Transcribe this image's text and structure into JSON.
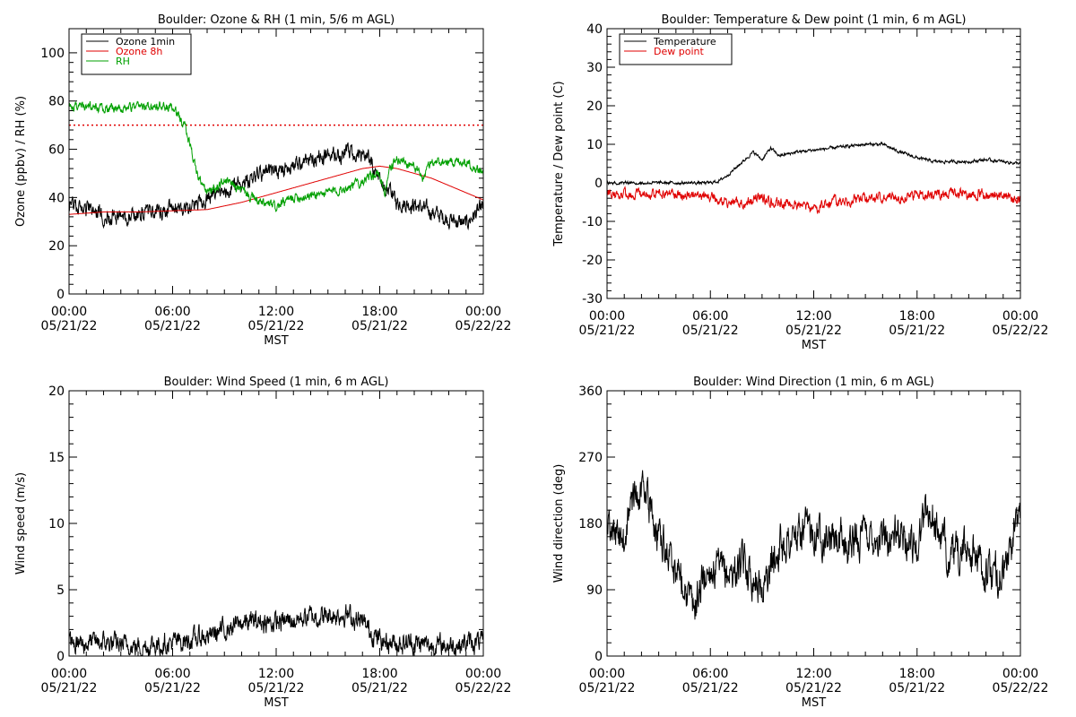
{
  "x_ticks": [
    {
      "time": "00:00",
      "date": "05/21/22"
    },
    {
      "time": "06:00",
      "date": "05/21/22"
    },
    {
      "time": "12:00",
      "date": "05/21/22"
    },
    {
      "time": "18:00",
      "date": "05/21/22"
    },
    {
      "time": "00:00",
      "date": "05/22/22"
    }
  ],
  "chart_data": [
    {
      "type": "line",
      "title": "Boulder: Ozone & RH (1 min, 5/6 m AGL)",
      "xlabel": "MST",
      "ylabel": "Ozone (ppbv) / RH (%)",
      "xlim": [
        0,
        24
      ],
      "ylim": [
        0,
        110
      ],
      "yticks": [
        0,
        20,
        40,
        60,
        80,
        100
      ],
      "legend": "top-left",
      "reference_line": {
        "y": 70,
        "color": "#e00000",
        "style": "dotted"
      },
      "series": [
        {
          "name": "Ozone 1min",
          "color": "#000000",
          "noise": 2.5,
          "seed": 1,
          "points": [
            [
              0,
              37
            ],
            [
              1,
              35
            ],
            [
              2,
              33
            ],
            [
              3,
              32
            ],
            [
              4,
              33
            ],
            [
              5,
              34
            ],
            [
              6,
              35
            ],
            [
              7,
              36
            ],
            [
              8,
              39
            ],
            [
              9,
              43
            ],
            [
              10,
              47
            ],
            [
              11,
              49
            ],
            [
              12,
              51
            ],
            [
              13,
              53
            ],
            [
              14,
              56
            ],
            [
              15,
              57
            ],
            [
              16,
              58
            ],
            [
              17,
              57
            ],
            [
              17.5,
              55
            ],
            [
              18,
              47
            ],
            [
              19,
              38
            ],
            [
              20,
              37
            ],
            [
              21,
              34
            ],
            [
              22,
              31
            ],
            [
              23,
              29
            ],
            [
              23.5,
              33
            ],
            [
              24,
              36
            ]
          ]
        },
        {
          "name": "Ozone 8h",
          "color": "#e00000",
          "noise": 0,
          "seed": 2,
          "points": [
            [
              0,
              33
            ],
            [
              2,
              34
            ],
            [
              4,
              34
            ],
            [
              6,
              34.5
            ],
            [
              8,
              35
            ],
            [
              10,
              38
            ],
            [
              12,
              42
            ],
            [
              14,
              46
            ],
            [
              16,
              50
            ],
            [
              17,
              52
            ],
            [
              18,
              53
            ],
            [
              19,
              52
            ],
            [
              20,
              50
            ],
            [
              21,
              48
            ],
            [
              22,
              45
            ],
            [
              23,
              42
            ],
            [
              24,
              39
            ]
          ]
        },
        {
          "name": "RH",
          "color": "#00a000",
          "noise": 1.5,
          "seed": 3,
          "points": [
            [
              0,
              78
            ],
            [
              2,
              77
            ],
            [
              4,
              77.5
            ],
            [
              5,
              78
            ],
            [
              6,
              77
            ],
            [
              6.7,
              70
            ],
            [
              7,
              62
            ],
            [
              7.5,
              48
            ],
            [
              8,
              42
            ],
            [
              8.5,
              44
            ],
            [
              9,
              47
            ],
            [
              10,
              43
            ],
            [
              11,
              38
            ],
            [
              12,
              36
            ],
            [
              13,
              40
            ],
            [
              14,
              41
            ],
            [
              15,
              42
            ],
            [
              16,
              44
            ],
            [
              17,
              47
            ],
            [
              18,
              50
            ],
            [
              18.3,
              42
            ],
            [
              18.6,
              52
            ],
            [
              19,
              56
            ],
            [
              20,
              53
            ],
            [
              20.5,
              48
            ],
            [
              21,
              55
            ],
            [
              22,
              55
            ],
            [
              23,
              55
            ],
            [
              24,
              50
            ]
          ]
        }
      ]
    },
    {
      "type": "line",
      "title": "Boulder: Temperature & Dew point (1 min, 6 m AGL)",
      "xlabel": "MST",
      "ylabel": "Temperature / Dew point (C)",
      "xlim": [
        0,
        24
      ],
      "ylim": [
        -30,
        40
      ],
      "yticks": [
        -30,
        -20,
        -10,
        0,
        10,
        20,
        30,
        40
      ],
      "legend": "top-left",
      "series": [
        {
          "name": "Temperature",
          "color": "#000000",
          "noise": 0.3,
          "seed": 4,
          "points": [
            [
              0,
              0
            ],
            [
              3,
              0
            ],
            [
              6,
              0
            ],
            [
              6.5,
              0.5
            ],
            [
              7,
              2
            ],
            [
              7.5,
              4
            ],
            [
              8,
              6
            ],
            [
              8.5,
              8
            ],
            [
              9,
              6
            ],
            [
              9.5,
              9
            ],
            [
              10,
              7
            ],
            [
              11,
              8
            ],
            [
              12,
              8.5
            ],
            [
              13,
              9
            ],
            [
              14,
              9.5
            ],
            [
              15,
              10
            ],
            [
              16,
              10
            ],
            [
              17,
              8
            ],
            [
              18,
              6.5
            ],
            [
              19,
              5.5
            ],
            [
              20,
              5.5
            ],
            [
              21,
              5.5
            ],
            [
              22,
              6
            ],
            [
              23,
              5.5
            ],
            [
              24,
              5
            ]
          ]
        },
        {
          "name": "Dew point",
          "color": "#e00000",
          "noise": 1,
          "seed": 5,
          "points": [
            [
              0,
              -3
            ],
            [
              3,
              -3
            ],
            [
              6,
              -3.5
            ],
            [
              7,
              -5
            ],
            [
              8,
              -5.5
            ],
            [
              9,
              -4
            ],
            [
              10,
              -5
            ],
            [
              11,
              -6
            ],
            [
              12,
              -7
            ],
            [
              13,
              -5
            ],
            [
              14,
              -4.5
            ],
            [
              15,
              -4
            ],
            [
              16,
              -3.5
            ],
            [
              17,
              -4
            ],
            [
              18,
              -3
            ],
            [
              19,
              -3
            ],
            [
              20,
              -2.5
            ],
            [
              21,
              -3
            ],
            [
              22,
              -3
            ],
            [
              23,
              -3
            ],
            [
              24,
              -4.5
            ]
          ]
        }
      ]
    },
    {
      "type": "line",
      "title": "Boulder: Wind Speed (1 min, 6 m AGL)",
      "xlabel": "MST",
      "ylabel": "Wind speed (m/s)",
      "xlim": [
        0,
        24
      ],
      "ylim": [
        0,
        20
      ],
      "yticks": [
        0,
        5,
        10,
        15,
        20
      ],
      "legend": "none",
      "series": [
        {
          "color": "#000000",
          "noise": 0.6,
          "seed": 6,
          "points": [
            [
              0,
              1
            ],
            [
              2,
              1
            ],
            [
              4,
              0.7
            ],
            [
              6,
              1
            ],
            [
              7,
              1.2
            ],
            [
              8,
              1.5
            ],
            [
              9,
              2
            ],
            [
              10,
              2.5
            ],
            [
              11,
              2.6
            ],
            [
              12,
              2.5
            ],
            [
              13,
              2.7
            ],
            [
              14,
              3
            ],
            [
              15,
              3
            ],
            [
              16,
              3.2
            ],
            [
              17,
              2.5
            ],
            [
              18,
              1.2
            ],
            [
              19,
              1
            ],
            [
              20,
              1
            ],
            [
              21,
              0.8
            ],
            [
              22,
              0.8
            ],
            [
              23,
              1
            ],
            [
              24,
              1
            ]
          ]
        }
      ]
    },
    {
      "type": "line",
      "title": "Boulder: Wind Direction (1 min, 6 m AGL)",
      "xlabel": "MST",
      "ylabel": "Wind direction (deg)",
      "xlim": [
        0,
        24
      ],
      "ylim": [
        0,
        360
      ],
      "yticks": [
        0,
        90,
        180,
        270,
        360
      ],
      "legend": "none",
      "series": [
        {
          "color": "#000000",
          "noise": 20,
          "seed": 7,
          "points": [
            [
              0,
              170
            ],
            [
              1,
              160
            ],
            [
              1.5,
              210
            ],
            [
              2,
              230
            ],
            [
              3,
              160
            ],
            [
              4,
              120
            ],
            [
              4.5,
              100
            ],
            [
              5,
              60
            ],
            [
              5.5,
              100
            ],
            [
              6,
              120
            ],
            [
              7,
              110
            ],
            [
              8,
              125
            ],
            [
              9,
              90
            ],
            [
              10,
              150
            ],
            [
              11,
              160
            ],
            [
              12,
              175
            ],
            [
              13,
              160
            ],
            [
              14,
              150
            ],
            [
              15,
              165
            ],
            [
              16,
              160
            ],
            [
              17,
              165
            ],
            [
              18,
              150
            ],
            [
              18.5,
              200
            ],
            [
              19,
              180
            ],
            [
              20,
              130
            ],
            [
              21,
              150
            ],
            [
              22,
              110
            ],
            [
              23,
              110
            ],
            [
              23.5,
              150
            ],
            [
              24,
              200
            ]
          ]
        }
      ]
    }
  ]
}
